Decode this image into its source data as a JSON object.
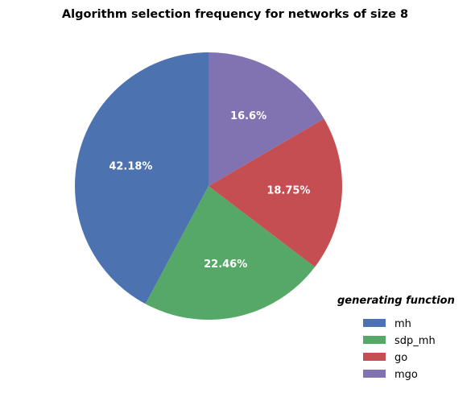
{
  "chart_data": {
    "type": "pie",
    "title": "Algorithm selection frequency for networks of size 8",
    "categories": [
      "mh",
      "sdp_mh",
      "go",
      "mgo"
    ],
    "values": [
      42.18,
      22.46,
      18.75,
      16.6
    ],
    "labels": [
      "42.18%",
      "22.46%",
      "18.75%",
      "16.6%"
    ],
    "colors": [
      "#4c72b0",
      "#55a868",
      "#c44e52",
      "#8172b2"
    ],
    "start_angle_deg": 90,
    "direction": "counterclockwise",
    "legend": {
      "title": "generating function",
      "placement": "bottom-right"
    }
  }
}
